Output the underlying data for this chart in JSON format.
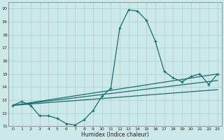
{
  "xlabel": "Humidex (Indice chaleur)",
  "background_color": "#cce8e8",
  "grid_color": "#aad4d4",
  "line_color": "#1a6e6e",
  "xlim": [
    -0.5,
    23.5
  ],
  "ylim": [
    11,
    20.5
  ],
  "xticks": [
    0,
    1,
    2,
    3,
    4,
    5,
    6,
    7,
    8,
    9,
    10,
    11,
    12,
    13,
    14,
    15,
    16,
    17,
    18,
    19,
    20,
    21,
    22,
    23
  ],
  "yticks": [
    11,
    12,
    13,
    14,
    15,
    16,
    17,
    18,
    19,
    20
  ],
  "main_x": [
    0,
    1,
    2,
    3,
    4,
    5,
    6,
    7,
    8,
    9,
    10,
    11,
    12,
    13,
    14,
    15,
    16,
    17,
    18,
    19,
    20,
    21,
    22,
    23
  ],
  "main_y": [
    12.6,
    12.9,
    12.6,
    11.8,
    11.8,
    11.6,
    11.2,
    11.1,
    11.5,
    12.2,
    13.3,
    13.9,
    18.5,
    19.9,
    19.8,
    19.1,
    17.5,
    15.2,
    14.7,
    14.4,
    14.8,
    15.0,
    14.2,
    15.0
  ],
  "ref_lines": [
    {
      "x": [
        0,
        23
      ],
      "y": [
        12.6,
        15.0
      ]
    },
    {
      "x": [
        0,
        23
      ],
      "y": [
        12.6,
        14.5
      ]
    },
    {
      "x": [
        0,
        23
      ],
      "y": [
        12.6,
        13.8
      ]
    }
  ]
}
